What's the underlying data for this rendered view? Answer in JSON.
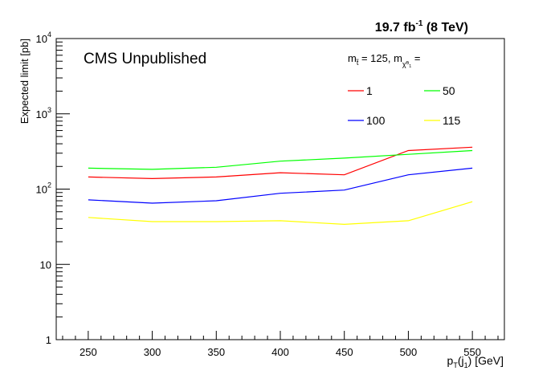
{
  "chart_data": {
    "type": "line",
    "top_label": {
      "lumi": "19.7 fb",
      "lumi_exp": "-1",
      "energy": " (8 TeV)"
    },
    "title": "CMS Unpublished",
    "xlabel": {
      "main": "p",
      "sub1": "T",
      "mid": "(j",
      "sub2": "1",
      "end": ") [GeV]"
    },
    "ylabel": "Expected limit [pb]",
    "xlim": [
      225,
      575
    ],
    "ylim": [
      1,
      10000
    ],
    "yscale": "log",
    "x_ticks": [
      250,
      300,
      350,
      400,
      450,
      500,
      550
    ],
    "y_ticks": [
      {
        "value": 1,
        "base": "1",
        "exp": ""
      },
      {
        "value": 10,
        "base": "10",
        "exp": ""
      },
      {
        "value": 100,
        "base": "10",
        "exp": "2"
      },
      {
        "value": 1000,
        "base": "10",
        "exp": "3"
      },
      {
        "value": 10000,
        "base": "10",
        "exp": "4"
      }
    ],
    "legend": {
      "placement": "top-right",
      "header": {
        "m": "m",
        "sub1": "t̃",
        "mid": " = 125, m",
        "sub2": "χ̃⁰₁",
        "end": " ="
      }
    },
    "x": [
      250,
      300,
      350,
      400,
      450,
      500,
      550
    ],
    "series": [
      {
        "name": "1",
        "color": "#ff0000",
        "values": [
          145,
          138,
          145,
          165,
          155,
          325,
          360
        ]
      },
      {
        "name": "50",
        "color": "#00ff00",
        "values": [
          190,
          183,
          195,
          235,
          258,
          290,
          325
        ]
      },
      {
        "name": "100",
        "color": "#0000ff",
        "values": [
          72,
          65,
          70,
          88,
          97,
          155,
          190
        ]
      },
      {
        "name": "115",
        "color": "#ffff00",
        "values": [
          42,
          37,
          37,
          38,
          34,
          38,
          68
        ]
      }
    ]
  }
}
